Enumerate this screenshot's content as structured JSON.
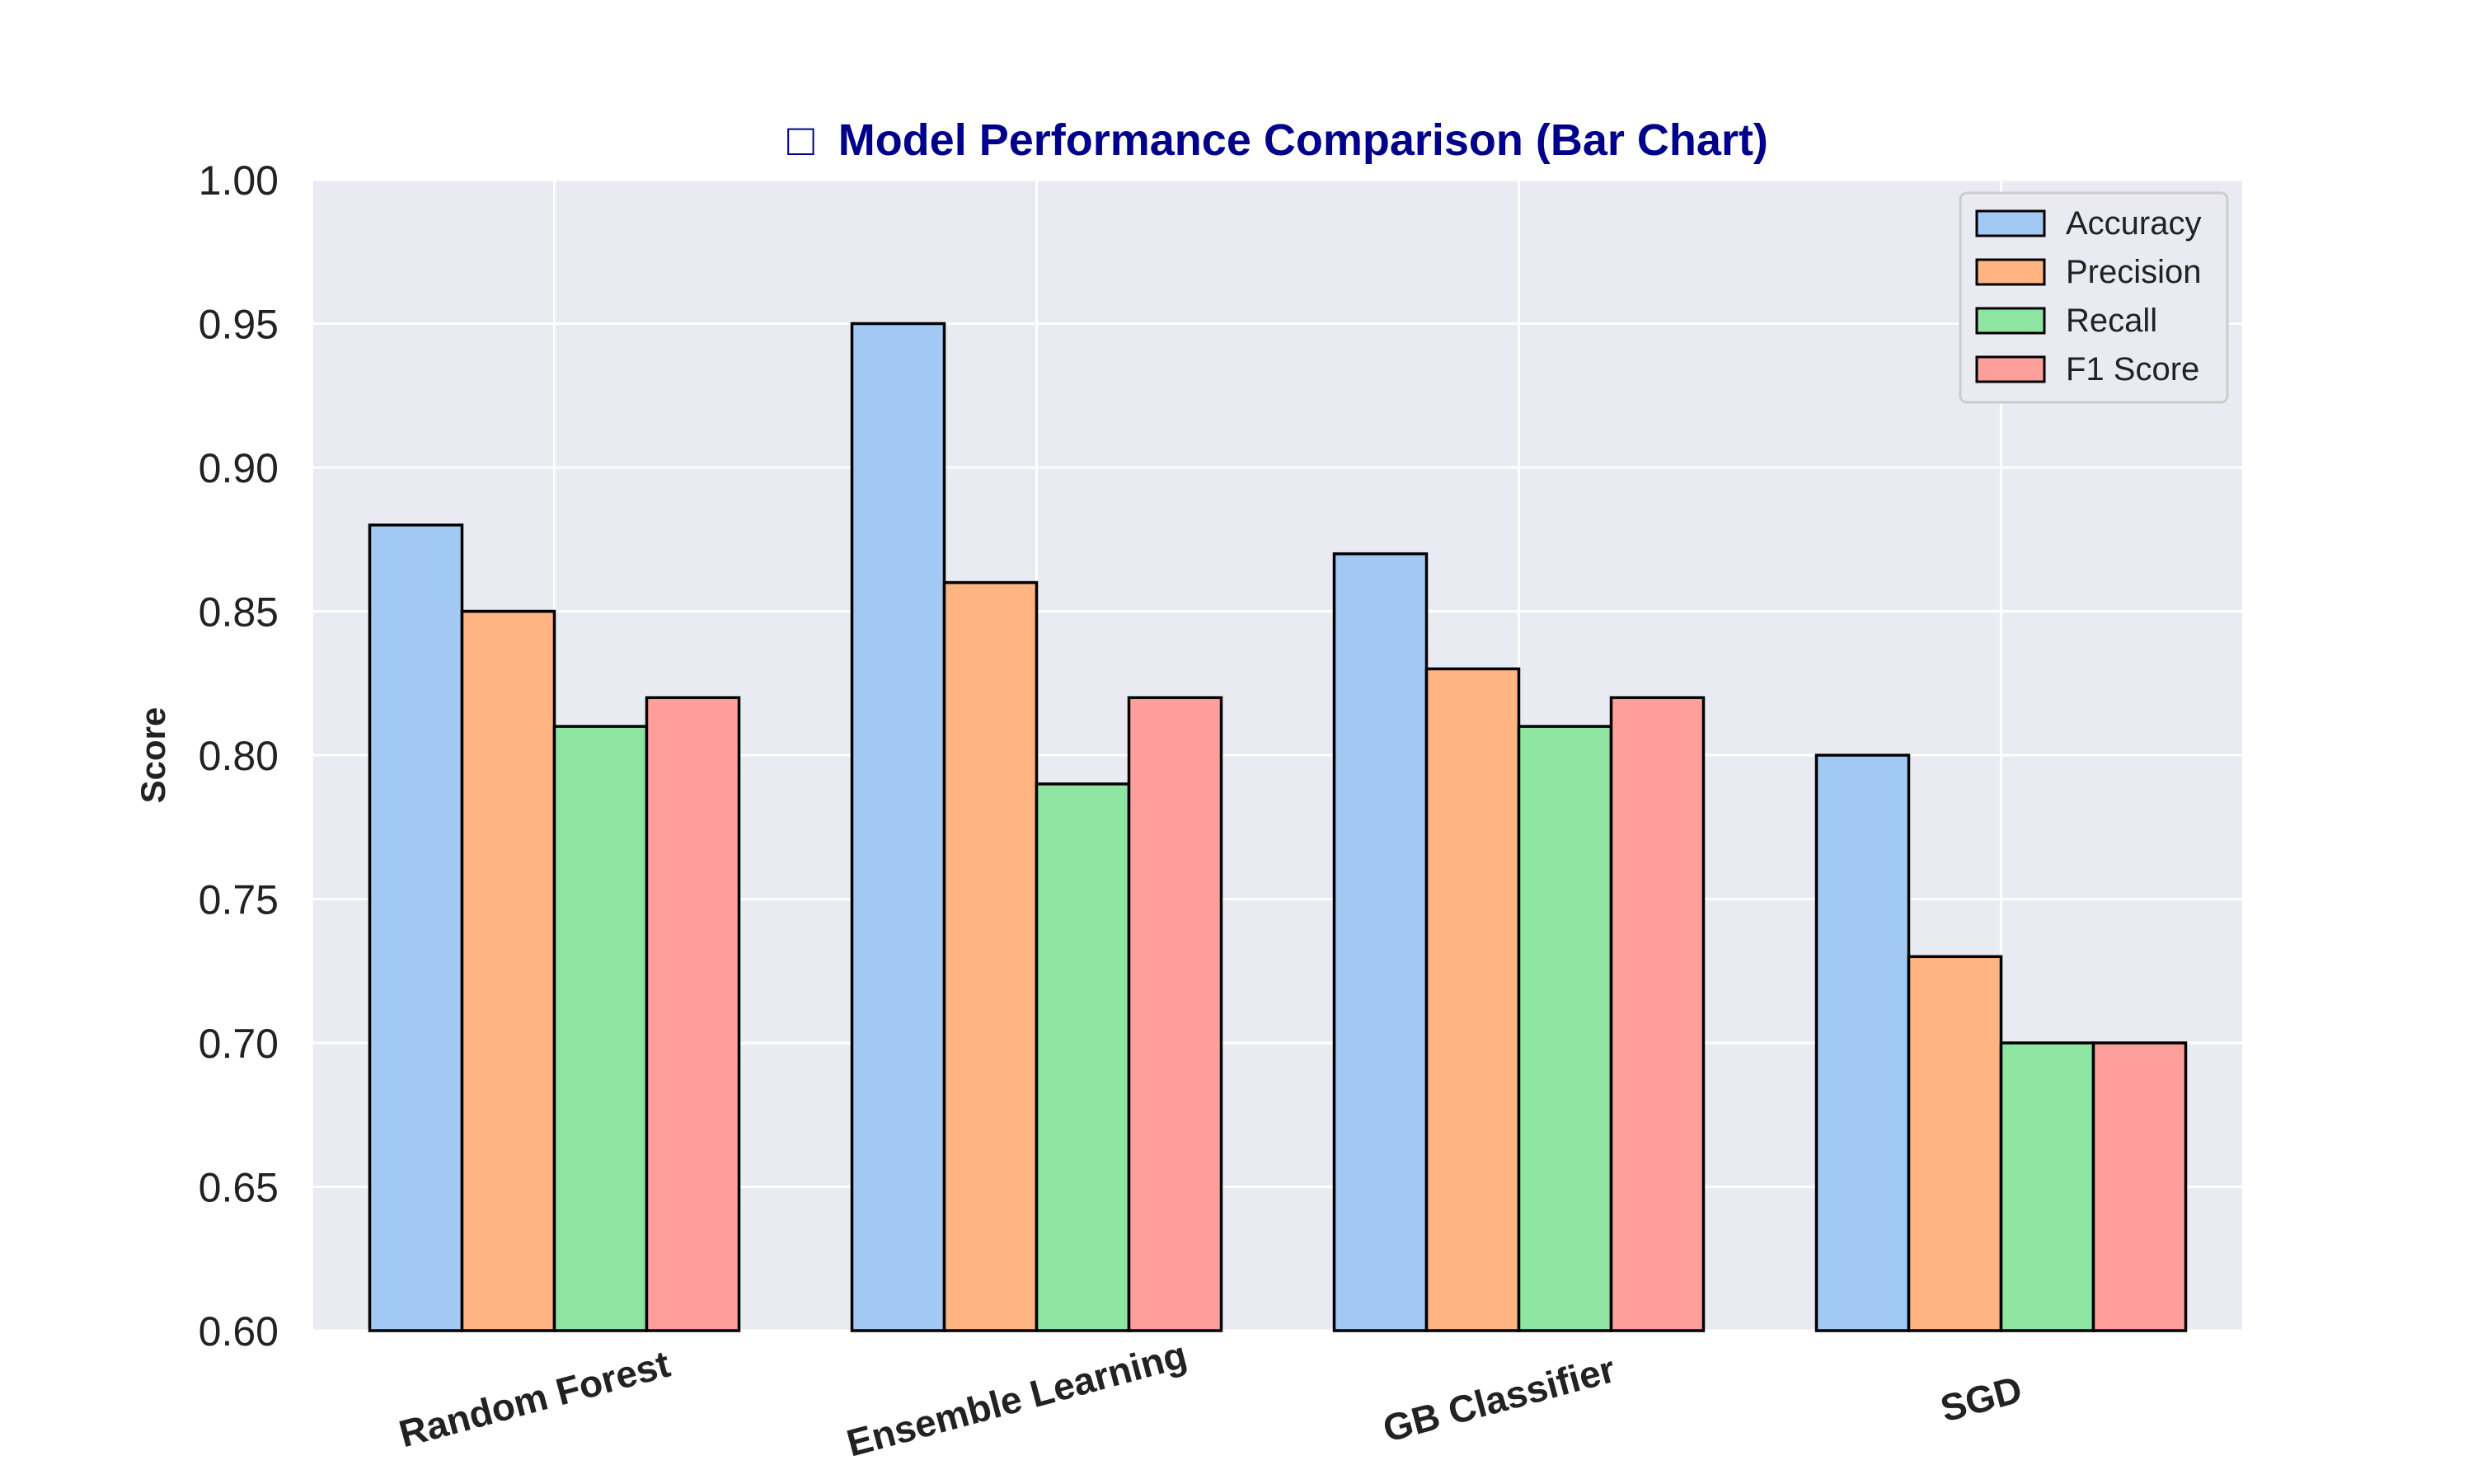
{
  "chart_data": {
    "type": "bar",
    "title": "Model Performance Comparison (Bar Chart)",
    "title_icon": "□",
    "title_color": "#00008b",
    "xlabel": "",
    "ylabel": "Score",
    "ylim": [
      0.6,
      1.0
    ],
    "yticks": [
      "0.60",
      "0.65",
      "0.70",
      "0.75",
      "0.80",
      "0.85",
      "0.90",
      "0.95",
      "1.00"
    ],
    "grid": true,
    "legend_position": "top-right",
    "plot_background": "#eaeaf2",
    "categories": [
      "Random Forest",
      "Ensemble Learning",
      "GB Classifier",
      "SGD"
    ],
    "series": [
      {
        "name": "Accuracy",
        "color": "#a1c9f4",
        "values": [
          0.88,
          0.95,
          0.87,
          0.8
        ]
      },
      {
        "name": "Precision",
        "color": "#ffb482",
        "values": [
          0.85,
          0.86,
          0.83,
          0.73
        ]
      },
      {
        "name": "Recall",
        "color": "#8de5a1",
        "values": [
          0.81,
          0.79,
          0.81,
          0.7
        ]
      },
      {
        "name": "F1 Score",
        "color": "#ff9f9b",
        "values": [
          0.82,
          0.82,
          0.82,
          0.7
        ]
      }
    ]
  }
}
